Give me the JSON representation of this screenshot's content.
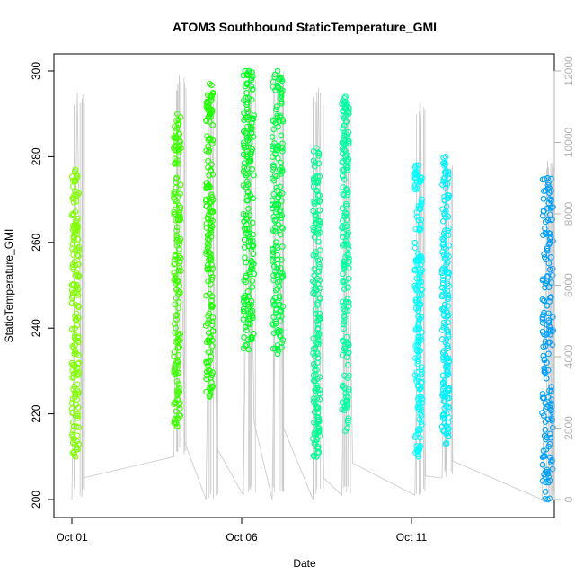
{
  "chart_data": {
    "type": "scatter",
    "title": "ATOM3 Southbound StaticTemperature_GMI",
    "xlabel": "Date",
    "ylabel": "StaticTemperature_GMI",
    "x_range": [
      0,
      14.3
    ],
    "ylim": [
      200,
      300
    ],
    "y2lim": [
      0,
      12000
    ],
    "x_ticks": [
      {
        "value": 0,
        "label": "Oct 01"
      },
      {
        "value": 5,
        "label": "Oct 06"
      },
      {
        "value": 10,
        "label": "Oct 11"
      }
    ],
    "y_ticks": [
      200,
      220,
      240,
      260,
      280,
      300
    ],
    "y2_ticks": [
      0,
      2000,
      4000,
      6000,
      8000,
      10000,
      12000
    ],
    "grid": false,
    "series": [
      {
        "color": "#80ff00",
        "day": 0.0,
        "ymin": 210,
        "ymax": 277,
        "lo": 200,
        "hi": 295
      },
      {
        "color": "#40ff00",
        "day": 3.0,
        "ymin": 217,
        "ymax": 290,
        "lo": 210,
        "hi": 299
      },
      {
        "color": "#20ff00",
        "day": 3.95,
        "ymin": 224,
        "ymax": 297,
        "lo": 200,
        "hi": 295
      },
      {
        "color": "#00ff20",
        "day": 5.05,
        "ymin": 235,
        "ymax": 300,
        "lo": 201,
        "hi": 300
      },
      {
        "color": "#00ff40",
        "day": 5.9,
        "ymin": 234,
        "ymax": 300,
        "lo": 200,
        "hi": 300
      },
      {
        "color": "#00ff90",
        "day": 7.1,
        "ymin": 210,
        "ymax": 282,
        "lo": 200,
        "hi": 296
      },
      {
        "color": "#00ffa0",
        "day": 7.95,
        "ymin": 216,
        "ymax": 294,
        "lo": 201,
        "hi": 294
      },
      {
        "color": "#00ffff",
        "day": 10.1,
        "ymin": 210,
        "ymax": 278,
        "lo": 201,
        "hi": 293
      },
      {
        "color": "#00f0ff",
        "day": 10.9,
        "ymin": 213,
        "ymax": 280,
        "lo": 205,
        "hi": 280
      },
      {
        "color": "#00a0ff",
        "day": 13.85,
        "ymin": 200,
        "ymax": 275,
        "lo": 200,
        "hi": 279
      }
    ],
    "connector_color": "#c8c8c8"
  }
}
